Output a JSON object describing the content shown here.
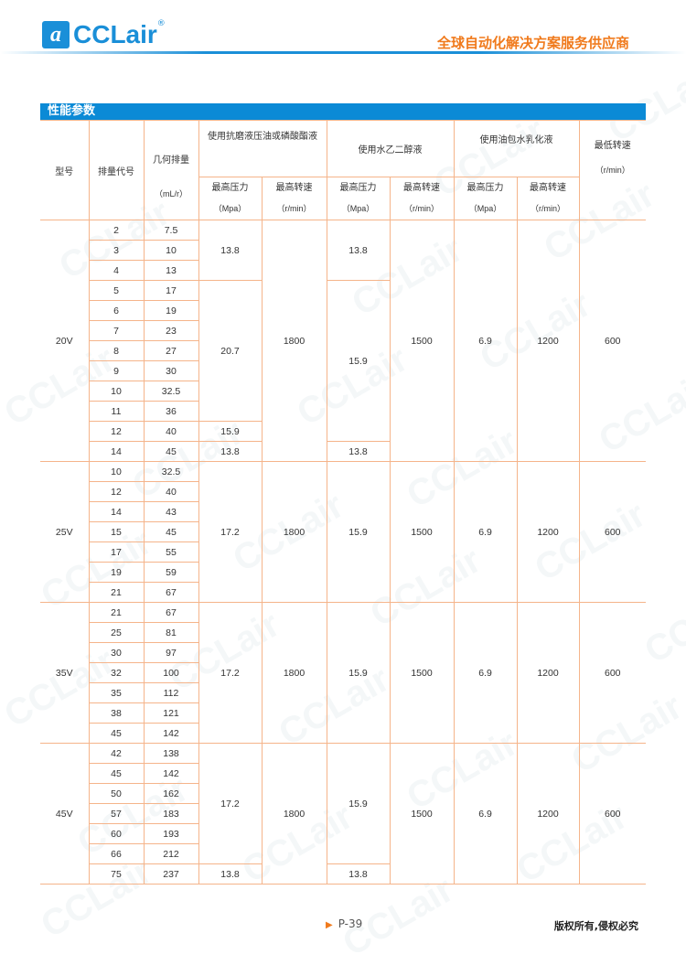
{
  "header": {
    "logo_text": "CCLair",
    "logo_mark": "a",
    "slogan": "全球自动化解决方案服务供应商"
  },
  "section_title": "性能参数",
  "columns": {
    "model": "型号",
    "code": "排量代号",
    "displacement": "几何排量",
    "displacement_unit": "（mL/r）",
    "fluid1": "使用抗磨液压油或磷酸酯液",
    "fluid2": "使用水乙二醇液",
    "fluid3": "使用油包水乳化液",
    "max_pressure": "最高压力",
    "pressure_unit": "（Mpa）",
    "max_speed": "最高转速",
    "speed_unit": "（r/min）",
    "min_speed": "最低转速",
    "min_speed_unit": "（r/min）"
  },
  "sections": [
    {
      "model": "20V",
      "rows": [
        [
          "2",
          "7.5"
        ],
        [
          "3",
          "10"
        ],
        [
          "4",
          "13"
        ],
        [
          "5",
          "17"
        ],
        [
          "6",
          "19"
        ],
        [
          "7",
          "23"
        ],
        [
          "8",
          "27"
        ],
        [
          "9",
          "30"
        ],
        [
          "10",
          "32.5"
        ],
        [
          "11",
          "36"
        ],
        [
          "12",
          "40"
        ],
        [
          "14",
          "45"
        ]
      ],
      "p1": [
        [
          "13.8",
          3
        ],
        [
          "20.7",
          7
        ],
        [
          "15.9",
          1
        ],
        [
          "13.8",
          1
        ]
      ],
      "s1": [
        [
          "1800",
          12
        ]
      ],
      "p2": [
        [
          "13.8",
          3
        ],
        [
          "15.9",
          8
        ],
        [
          "13.8",
          1
        ]
      ],
      "s2": [
        [
          "1500",
          12
        ]
      ],
      "p3": [
        [
          "6.9",
          12
        ]
      ],
      "s3": [
        [
          "1200",
          12
        ]
      ],
      "min": [
        [
          "600",
          12
        ]
      ]
    },
    {
      "model": "25V",
      "rows": [
        [
          "10",
          "32.5"
        ],
        [
          "12",
          "40"
        ],
        [
          "14",
          "43"
        ],
        [
          "15",
          "45"
        ],
        [
          "17",
          "55"
        ],
        [
          "19",
          "59"
        ],
        [
          "21",
          "67"
        ]
      ],
      "p1": [
        [
          "17.2",
          7
        ]
      ],
      "s1": [
        [
          "1800",
          7
        ]
      ],
      "p2": [
        [
          "15.9",
          7
        ]
      ],
      "s2": [
        [
          "1500",
          7
        ]
      ],
      "p3": [
        [
          "6.9",
          7
        ]
      ],
      "s3": [
        [
          "1200",
          7
        ]
      ],
      "min": [
        [
          "600",
          7
        ]
      ]
    },
    {
      "model": "35V",
      "rows": [
        [
          "21",
          "67"
        ],
        [
          "25",
          "81"
        ],
        [
          "30",
          "97"
        ],
        [
          "32",
          "100"
        ],
        [
          "35",
          "112"
        ],
        [
          "38",
          "121"
        ],
        [
          "45",
          "142"
        ]
      ],
      "p1": [
        [
          "17.2",
          7
        ]
      ],
      "s1": [
        [
          "1800",
          7
        ]
      ],
      "p2": [
        [
          "15.9",
          7
        ]
      ],
      "s2": [
        [
          "1500",
          7
        ]
      ],
      "p3": [
        [
          "6.9",
          7
        ]
      ],
      "s3": [
        [
          "1200",
          7
        ]
      ],
      "min": [
        [
          "600",
          7
        ]
      ]
    },
    {
      "model": "45V",
      "rows": [
        [
          "42",
          "138"
        ],
        [
          "45",
          "142"
        ],
        [
          "50",
          "162"
        ],
        [
          "57",
          "183"
        ],
        [
          "60",
          "193"
        ],
        [
          "66",
          "212"
        ],
        [
          "75",
          "237"
        ]
      ],
      "p1": [
        [
          "17.2",
          6
        ],
        [
          "13.8",
          1
        ]
      ],
      "s1": [
        [
          "1800",
          7
        ]
      ],
      "p2": [
        [
          "15.9",
          6
        ],
        [
          "13.8",
          1
        ]
      ],
      "s2": [
        [
          "1500",
          7
        ]
      ],
      "p3": [
        [
          "6.9",
          7
        ]
      ],
      "s3": [
        [
          "1200",
          7
        ]
      ],
      "min": [
        [
          "600",
          7
        ]
      ]
    }
  ],
  "footer": {
    "page": "P-39",
    "copyright": "版权所有,侵权必究",
    "page_icon": "triangle-right-icon"
  },
  "colors": {
    "brand_blue": "#0b8ad6",
    "accent_orange": "#f07a1c",
    "grid": "#f5b48a"
  }
}
